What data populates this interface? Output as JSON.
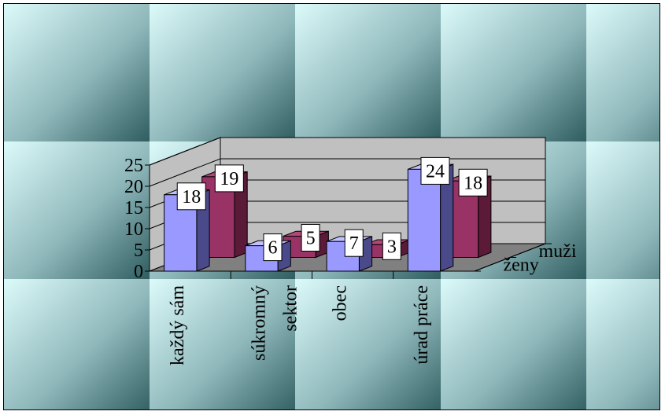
{
  "chart_data": {
    "type": "bar",
    "title": "",
    "xlabel": "",
    "ylabel": "",
    "categories": [
      "každý sám",
      "súkromný\nsektor",
      "obec",
      "úrad práce"
    ],
    "series": [
      {
        "name": "ženy",
        "values": [
          18,
          6,
          7,
          24
        ],
        "color": "#9999ff",
        "side_color": "#4a4a8a",
        "top_color": "#c0c0ff"
      },
      {
        "name": "muži",
        "values": [
          19,
          5,
          3,
          18
        ],
        "color": "#993366",
        "side_color": "#5a1a38",
        "top_color": "#b04878"
      }
    ],
    "ylim": [
      0,
      25
    ],
    "yticks": [
      0,
      5,
      10,
      15,
      20,
      25
    ],
    "grid": true,
    "plot_type": "3d-clustered-column",
    "wall_color": "#c0c0c0",
    "floor_color": "#808080",
    "background": "teal-gradient-tiles"
  }
}
